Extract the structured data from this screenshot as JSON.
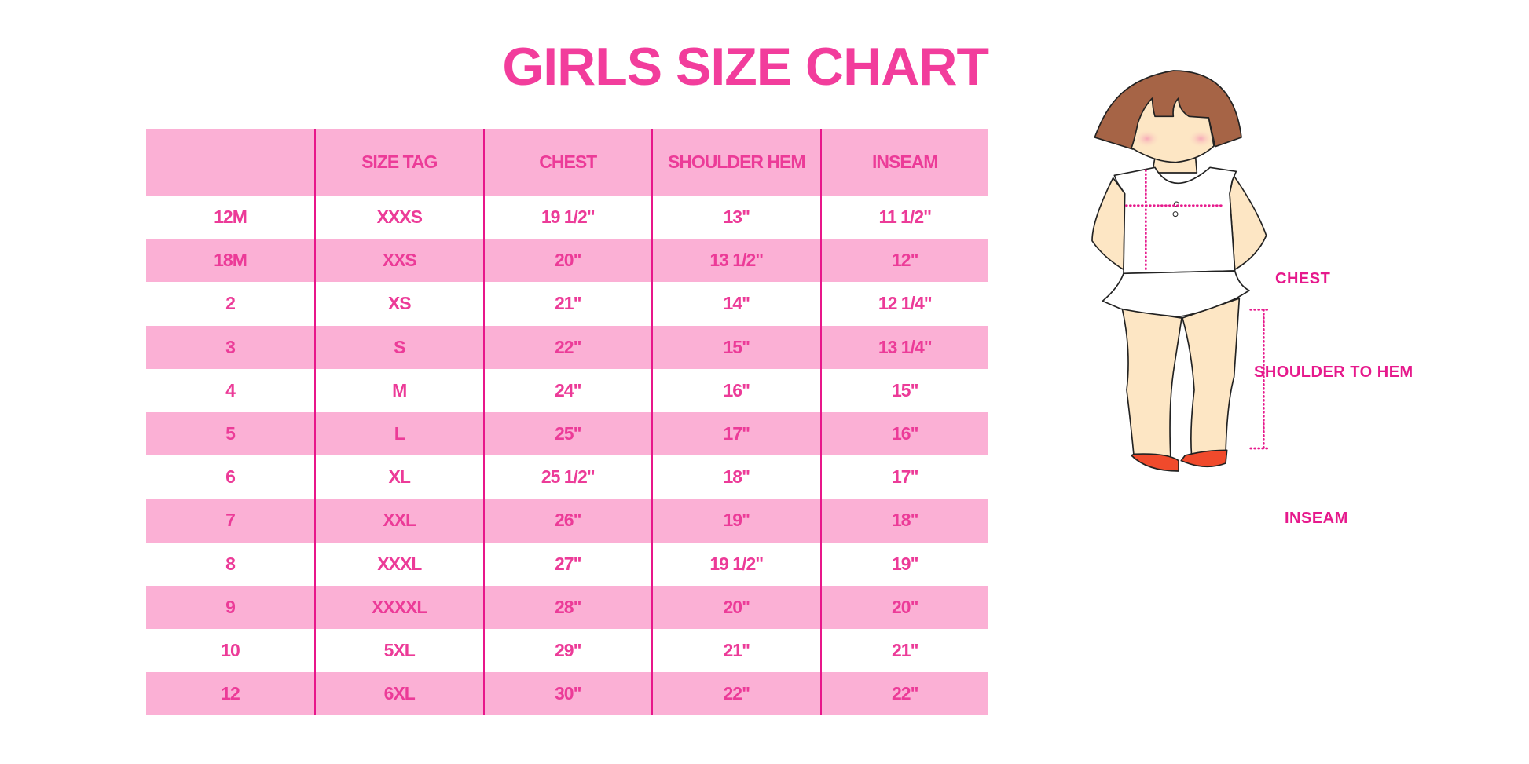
{
  "title": "GIRLS SIZE CHART",
  "table": {
    "headers": [
      "",
      "SIZE TAG",
      "CHEST",
      "SHOULDER HEM",
      "INSEAM"
    ],
    "rows": [
      [
        "12M",
        "XXXS",
        "19 1/2\"",
        "13\"",
        "11 1/2\""
      ],
      [
        "18M",
        "XXS",
        "20\"",
        "13 1/2\"",
        "12\""
      ],
      [
        "2",
        "XS",
        "21\"",
        "14\"",
        "12 1/4\""
      ],
      [
        "3",
        "S",
        "22\"",
        "15\"",
        "13 1/4\""
      ],
      [
        "4",
        "M",
        "24\"",
        "16\"",
        "15\""
      ],
      [
        "5",
        "L",
        "25\"",
        "17\"",
        "16\""
      ],
      [
        "6",
        "XL",
        "25 1/2\"",
        "18\"",
        "17\""
      ],
      [
        "7",
        "XXL",
        "26\"",
        "19\"",
        "18\""
      ],
      [
        "8",
        "XXXL",
        "27\"",
        "19 1/2\"",
        "19\""
      ],
      [
        "9",
        "XXXXL",
        "28\"",
        "20\"",
        "20\""
      ],
      [
        "10",
        "5XL",
        "29\"",
        "21\"",
        "21\""
      ],
      [
        "12",
        "6XL",
        "30\"",
        "22\"",
        "22\""
      ]
    ]
  },
  "diagram": {
    "chest_label": "CHEST",
    "shoulder_label": "SHOULDER TO HEM",
    "inseam_label": "INSEAM"
  },
  "colors": {
    "title": "#f23d9c",
    "row_pink": "#fbb0d5",
    "divider": "#e8168a",
    "label": "#e6198c",
    "hair": "#a66446",
    "skin": "#fde6c4",
    "shoes": "#f04a2c"
  }
}
